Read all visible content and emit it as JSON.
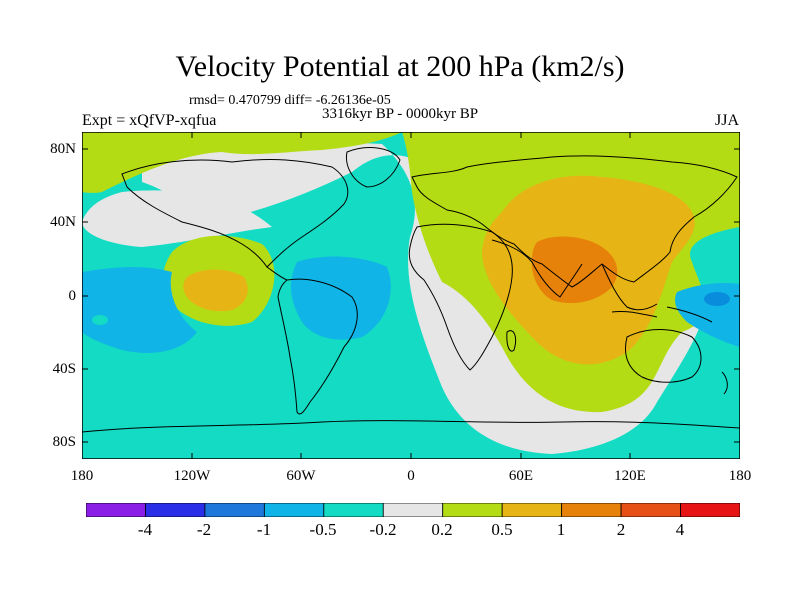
{
  "title": "Velocity Potential at 200 hPa (km2/s)",
  "stats": "rmsd= 0.470799 diff= -6.26136e-05",
  "period": "3316kyr BP - 0000kyr BP",
  "experiment": "Expt = xQfVP-xqfua",
  "season": "JJA",
  "lat_labels": [
    "80N",
    "40N",
    "0",
    "40S",
    "80S"
  ],
  "lon_labels": [
    "180",
    "120W",
    "60W",
    "0",
    "60E",
    "120E",
    "180"
  ],
  "colorbar": {
    "labels": [
      "-4",
      "-2",
      "-1",
      "-0.5",
      "-0.2",
      "0.2",
      "0.5",
      "1",
      "2",
      "4"
    ],
    "colors": [
      "#8a1ee6",
      "#2a2ee6",
      "#1e78dc",
      "#11b4e6",
      "#14dcc4",
      "#e6e6e6",
      "#b4dc14",
      "#e6b414",
      "#e6820a",
      "#e65014",
      "#e61414"
    ]
  },
  "palette": {
    "neg_strong": "#0a8cdc",
    "neg_mid": "#11b4e6",
    "neg_weak": "#14dcc4",
    "neutral": "#e6e6e6",
    "pos_weak": "#b4dc14",
    "pos_mid": "#e6b414",
    "pos_strong": "#e6820a"
  }
}
